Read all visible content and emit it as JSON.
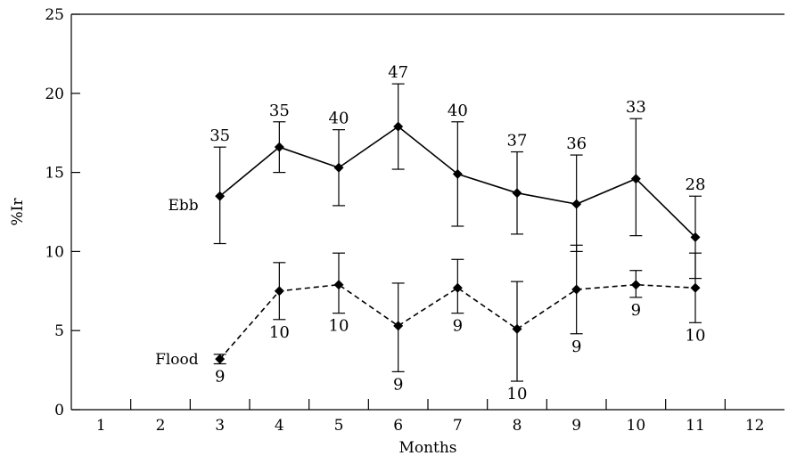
{
  "chart_data": {
    "type": "line",
    "title": "",
    "xlabel": "Months",
    "ylabel": "%Ir",
    "xlim": [
      0.5,
      12.5
    ],
    "ylim": [
      0,
      25
    ],
    "x_ticks": [
      1,
      2,
      3,
      4,
      5,
      6,
      7,
      8,
      9,
      10,
      11,
      12
    ],
    "y_ticks": [
      0,
      5,
      10,
      15,
      20,
      25
    ],
    "grid": false,
    "error_bars": true,
    "series": [
      {
        "name": "Ebb",
        "line_style": "solid",
        "marker": "diamond",
        "x": [
          3,
          4,
          5,
          6,
          7,
          8,
          9,
          10,
          11
        ],
        "y": [
          13.5,
          16.6,
          15.3,
          17.9,
          14.9,
          13.7,
          13.0,
          14.6,
          10.9
        ],
        "err_low": [
          10.5,
          15.0,
          12.9,
          15.2,
          11.6,
          11.1,
          10.0,
          11.0,
          8.3
        ],
        "err_high": [
          16.6,
          18.2,
          17.7,
          20.6,
          18.2,
          16.3,
          16.1,
          18.4,
          13.5
        ],
        "n": [
          "35",
          "35",
          "40",
          "47",
          "40",
          "37",
          "36",
          "33",
          "28"
        ],
        "n_position": "above"
      },
      {
        "name": "Flood",
        "line_style": "dashed",
        "marker": "diamond",
        "x": [
          3,
          4,
          5,
          6,
          7,
          8,
          9,
          10,
          11
        ],
        "y": [
          3.2,
          7.5,
          7.9,
          5.3,
          7.7,
          5.1,
          7.6,
          7.9,
          7.7
        ],
        "err_low": [
          2.9,
          5.7,
          6.1,
          2.4,
          6.1,
          1.8,
          4.8,
          7.1,
          5.5
        ],
        "err_high": [
          3.5,
          9.3,
          9.9,
          8.0,
          9.5,
          8.1,
          10.4,
          8.8,
          9.9
        ],
        "n": [
          "9",
          "10",
          "10",
          "9",
          "9",
          "10",
          "9",
          "9",
          "10"
        ],
        "n_position": "below"
      }
    ]
  }
}
